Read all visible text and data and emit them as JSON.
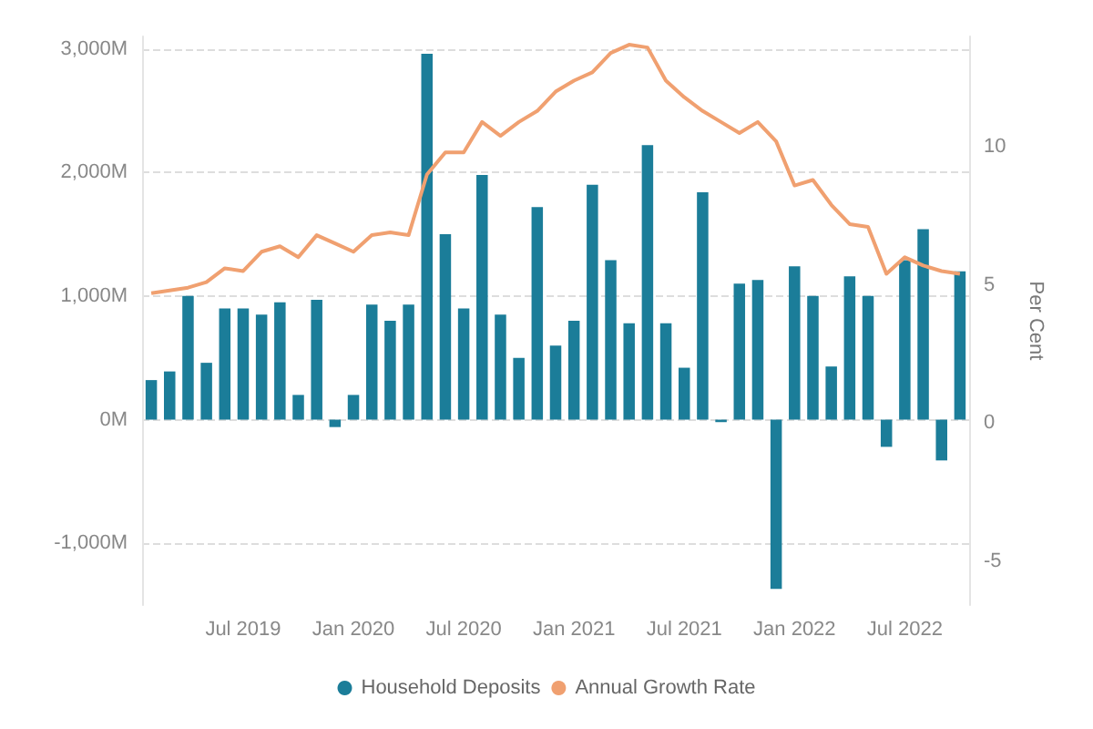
{
  "chart_data": {
    "type": "bar",
    "categories": [
      null,
      null,
      null,
      null,
      null,
      "Jul 2019",
      null,
      null,
      null,
      null,
      null,
      "Jan 2020",
      null,
      null,
      null,
      null,
      null,
      "Jul 2020",
      null,
      null,
      null,
      null,
      null,
      "Jan 2021",
      null,
      null,
      null,
      null,
      null,
      "Jul 2021",
      null,
      null,
      null,
      null,
      null,
      "Jan 2022",
      null,
      null,
      null,
      null,
      null,
      "Jul 2022",
      null,
      null,
      null
    ],
    "series": [
      {
        "name": "Household Deposits",
        "color": "#1b7d99",
        "values": [
          320,
          390,
          1000,
          460,
          900,
          900,
          850,
          950,
          200,
          970,
          -60,
          200,
          930,
          800,
          930,
          2960,
          1500,
          900,
          1980,
          850,
          500,
          1720,
          600,
          800,
          1900,
          1290,
          780,
          2220,
          780,
          420,
          1840,
          -20,
          1100,
          1130,
          -1370,
          1240,
          1000,
          430,
          1160,
          1000,
          -220,
          1290,
          1540,
          -330,
          1200
        ]
      },
      {
        "name": "Annual Growth Rate",
        "type": "line",
        "axis": "y2",
        "color": "#f0a070",
        "values": [
          4.7,
          4.8,
          4.9,
          5.1,
          5.6,
          5.5,
          6.2,
          6.4,
          6.0,
          6.8,
          6.5,
          6.2,
          6.8,
          6.9,
          6.8,
          9.0,
          9.8,
          9.8,
          10.9,
          10.4,
          10.9,
          11.3,
          12.0,
          12.4,
          12.7,
          13.4,
          13.7,
          13.6,
          12.4,
          11.8,
          11.3,
          10.9,
          10.5,
          10.9,
          10.2,
          8.6,
          8.8,
          7.9,
          7.2,
          7.1,
          5.4,
          6.0,
          5.7,
          5.5,
          5.4
        ]
      }
    ],
    "y2label": "Per Cent",
    "ylim": [
      -1500,
      3100
    ],
    "y2lim": [
      -6.6,
      14
    ],
    "yticks": [
      {
        "value": -1000,
        "label": "-1,000M"
      },
      {
        "value": 0,
        "label": "0M"
      },
      {
        "value": 1000,
        "label": "1,000M"
      },
      {
        "value": 2000,
        "label": "2,000M"
      },
      {
        "value": 3000,
        "label": "3,000M"
      }
    ],
    "y2ticks": [
      -5,
      0,
      5,
      10
    ],
    "grid": "y",
    "legend": "bottom",
    "marker": "none",
    "line_style": "solid"
  }
}
